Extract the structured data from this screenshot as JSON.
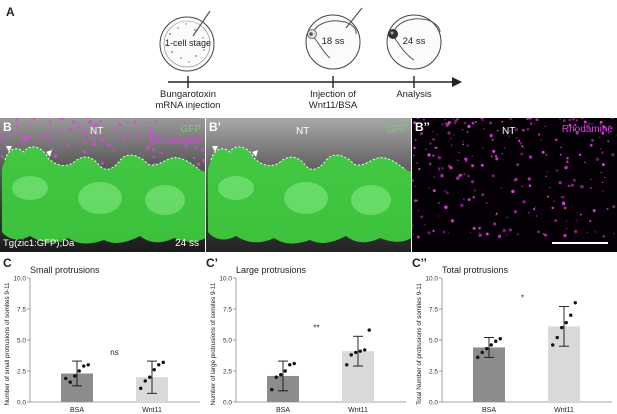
{
  "panel_A": {
    "letter": "A",
    "stage1_label": "1-cell stage",
    "stage2_label": "18 ss",
    "stage3_label": "24 ss",
    "step1_label_line1": "Bungarotoxin",
    "step1_label_line2": "mRNA injection",
    "step2_label_line1": "Injection of",
    "step2_label_line2": "Wnt11/BSA",
    "step3_label": "Analysis"
  },
  "panel_B": {
    "letter": "B",
    "nt_label": "NT",
    "gfp_label": "GFP",
    "rhodamine_label": "Rhodamine",
    "genotype_label": "Tg(zic1:GFP);Da",
    "stage_label": "24 ss"
  },
  "panel_B1": {
    "letter": "B’",
    "nt_label": "NT",
    "gfp_label": "GFP"
  },
  "panel_B2": {
    "letter": "B’’",
    "nt_label": "NT",
    "rhodamine_label": "Rhodamine"
  },
  "colors": {
    "gfp": "#5fe05f",
    "rhodamine": "#e040e0",
    "bsa_bar": "#8c8c8c",
    "wnt11_bar": "#d9d9d9"
  },
  "chart_data": [
    {
      "type": "bar",
      "letter": "C",
      "title": "Small protrusions",
      "ylabel": "Number of small protrusions of somites 9-11",
      "categories": [
        "BSA",
        "Wnt11"
      ],
      "values": [
        2.3,
        2.0
      ],
      "errors": [
        1.0,
        1.3
      ],
      "points": [
        [
          1.9,
          1.6,
          2.1,
          2.5,
          2.9,
          3.0
        ],
        [
          1.1,
          1.7,
          2.0,
          2.6,
          3.0,
          3.2
        ]
      ],
      "significance": "ns",
      "ylim": [
        0,
        10
      ],
      "yticks": [
        "0.0",
        "2.5",
        "5.0",
        "7.5",
        "10.0"
      ]
    },
    {
      "type": "bar",
      "letter": "C’",
      "title": "Large protrusions",
      "ylabel": "Number of large protrusions of somites 9-11",
      "categories": [
        "BSA",
        "Wnt11"
      ],
      "values": [
        2.1,
        4.1
      ],
      "errors": [
        1.2,
        1.2
      ],
      "points": [
        [
          1.0,
          2.0,
          2.2,
          2.5,
          3.0,
          3.1
        ],
        [
          3.0,
          3.8,
          4.0,
          4.1,
          4.2,
          5.8
        ]
      ],
      "significance": "**",
      "ylim": [
        0,
        10
      ],
      "yticks": [
        "0.0",
        "2.5",
        "5.0",
        "7.5",
        "10.0"
      ]
    },
    {
      "type": "bar",
      "letter": "C’’",
      "title": "Total protrusions",
      "ylabel": "Total Number of protrusions of somites 9-11",
      "categories": [
        "BSA",
        "Wnt11"
      ],
      "values": [
        4.4,
        6.1
      ],
      "errors": [
        0.8,
        1.6
      ],
      "points": [
        [
          3.6,
          4.0,
          4.3,
          4.6,
          4.9,
          5.1
        ],
        [
          4.6,
          5.2,
          6.0,
          6.4,
          7.0,
          8.0
        ]
      ],
      "significance": "*",
      "ylim": [
        0,
        10
      ],
      "yticks": [
        "0.0",
        "2.5",
        "5.0",
        "7.5",
        "10.0"
      ]
    }
  ]
}
